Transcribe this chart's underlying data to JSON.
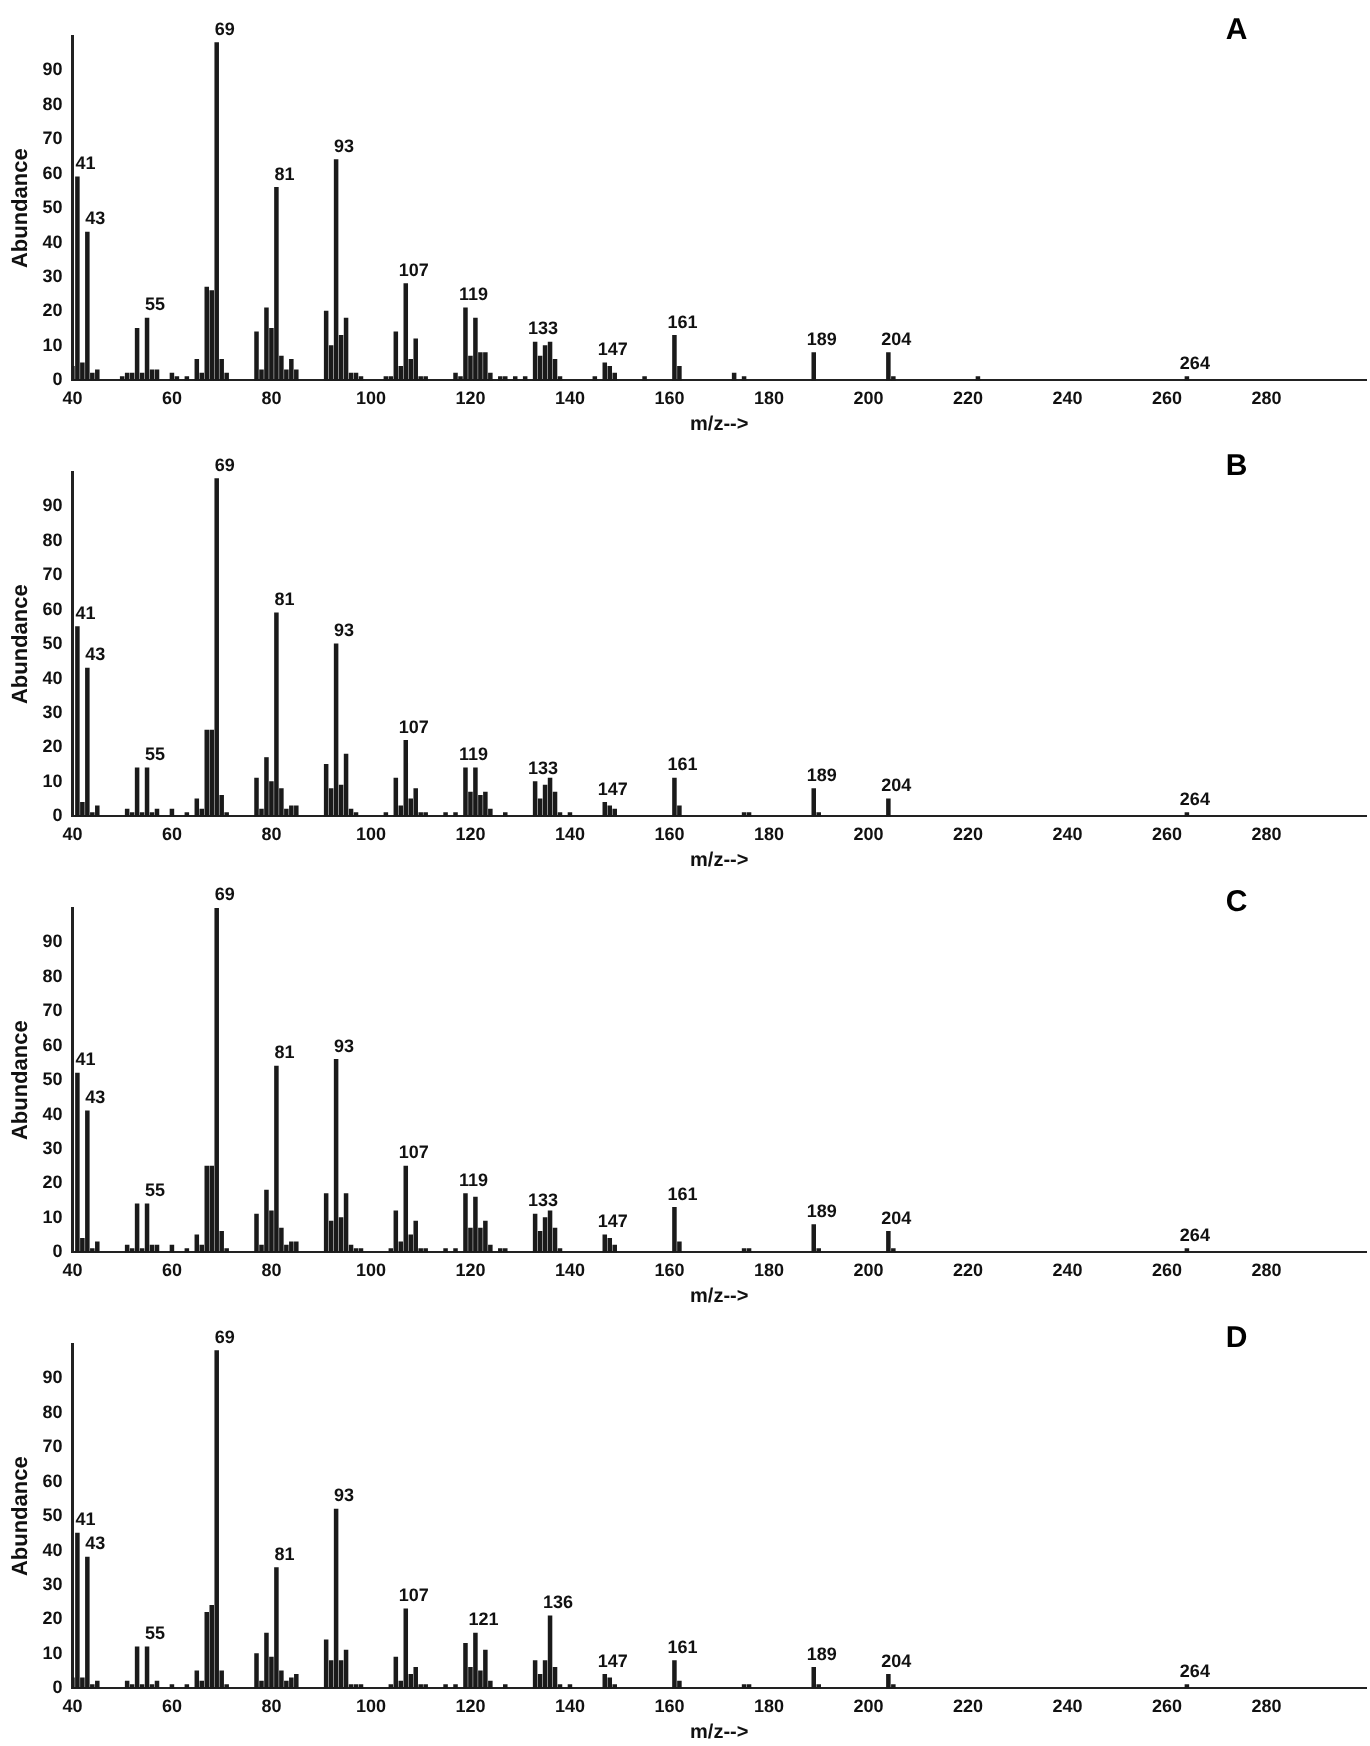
{
  "chart_data": [
    {
      "type": "bar",
      "title": "A",
      "xlabel": "m/z-->",
      "ylabel": "Abundance",
      "color": "#1a1a1a",
      "grid": false,
      "legend": false,
      "xlim": [
        40,
        300
      ],
      "xticks": [
        40,
        60,
        80,
        100,
        120,
        140,
        160,
        180,
        200,
        220,
        240,
        260,
        280
      ],
      "ylim": [
        0,
        100
      ],
      "yticks": [
        0,
        10,
        20,
        30,
        40,
        50,
        60,
        70,
        80,
        90
      ],
      "x": [
        40,
        41,
        42,
        43,
        44,
        45,
        50,
        51,
        52,
        53,
        54,
        55,
        56,
        57,
        60,
        61,
        63,
        65,
        66,
        67,
        68,
        69,
        70,
        71,
        77,
        78,
        79,
        80,
        81,
        82,
        83,
        84,
        85,
        91,
        92,
        93,
        94,
        95,
        96,
        97,
        98,
        103,
        104,
        105,
        106,
        107,
        108,
        109,
        110,
        111,
        117,
        118,
        119,
        120,
        121,
        122,
        123,
        124,
        126,
        127,
        129,
        131,
        133,
        134,
        135,
        136,
        137,
        138,
        145,
        147,
        148,
        149,
        155,
        161,
        162,
        173,
        175,
        189,
        204,
        205,
        222,
        264
      ],
      "values": [
        4,
        59,
        5,
        43,
        2,
        3,
        1,
        2,
        2,
        15,
        2,
        18,
        3,
        3,
        2,
        1,
        1,
        6,
        2,
        27,
        26,
        98,
        6,
        2,
        14,
        3,
        21,
        15,
        56,
        7,
        3,
        6,
        3,
        20,
        10,
        64,
        13,
        18,
        2,
        2,
        1,
        1,
        1,
        14,
        4,
        28,
        6,
        12,
        1,
        1,
        2,
        1,
        21,
        7,
        18,
        8,
        8,
        2,
        1,
        1,
        1,
        1,
        11,
        7,
        10,
        11,
        6,
        1,
        1,
        5,
        4,
        2,
        1,
        13,
        4,
        2,
        1,
        8,
        8,
        1,
        1,
        1
      ],
      "annotations": [
        {
          "text": "41",
          "x": 41,
          "y": 59
        },
        {
          "text": "43",
          "x": 43,
          "y": 43
        },
        {
          "text": "55",
          "x": 55,
          "y": 18
        },
        {
          "text": "69",
          "x": 69,
          "y": 98
        },
        {
          "text": "81",
          "x": 81,
          "y": 56
        },
        {
          "text": "93",
          "x": 93,
          "y": 64
        },
        {
          "text": "107",
          "x": 107,
          "y": 28
        },
        {
          "text": "119",
          "x": 119,
          "y": 21
        },
        {
          "text": "133",
          "x": 133,
          "y": 11
        },
        {
          "text": "147",
          "x": 147,
          "y": 5
        },
        {
          "text": "161",
          "x": 161,
          "y": 13
        },
        {
          "text": "189",
          "x": 189,
          "y": 8
        },
        {
          "text": "204",
          "x": 204,
          "y": 8
        },
        {
          "text": "264",
          "x": 264,
          "y": 1
        }
      ]
    },
    {
      "type": "bar",
      "title": "B",
      "xlabel": "m/z-->",
      "ylabel": "Abundance",
      "color": "#1a1a1a",
      "grid": false,
      "legend": false,
      "xlim": [
        40,
        300
      ],
      "xticks": [
        40,
        60,
        80,
        100,
        120,
        140,
        160,
        180,
        200,
        220,
        240,
        260,
        280
      ],
      "ylim": [
        0,
        100
      ],
      "yticks": [
        0,
        10,
        20,
        30,
        40,
        50,
        60,
        70,
        80,
        90
      ],
      "x": [
        41,
        42,
        43,
        44,
        45,
        51,
        52,
        53,
        54,
        55,
        56,
        57,
        60,
        63,
        65,
        66,
        67,
        68,
        69,
        70,
        71,
        77,
        78,
        79,
        80,
        81,
        82,
        83,
        84,
        85,
        91,
        92,
        93,
        94,
        95,
        96,
        97,
        103,
        105,
        106,
        107,
        108,
        109,
        110,
        111,
        115,
        117,
        119,
        120,
        121,
        122,
        123,
        124,
        127,
        133,
        134,
        135,
        136,
        137,
        138,
        140,
        147,
        148,
        149,
        161,
        162,
        175,
        176,
        189,
        190,
        204,
        264
      ],
      "values": [
        55,
        4,
        43,
        1,
        3,
        2,
        1,
        14,
        1,
        14,
        1,
        2,
        2,
        1,
        5,
        2,
        25,
        25,
        98,
        6,
        1,
        11,
        2,
        17,
        10,
        59,
        8,
        2,
        3,
        3,
        15,
        8,
        50,
        9,
        18,
        2,
        1,
        1,
        11,
        3,
        22,
        5,
        8,
        1,
        1,
        1,
        1,
        14,
        7,
        14,
        6,
        7,
        2,
        1,
        10,
        5,
        9,
        11,
        7,
        1,
        1,
        4,
        3,
        2,
        11,
        3,
        1,
        1,
        8,
        1,
        5,
        1
      ],
      "annotations": [
        {
          "text": "41",
          "x": 41,
          "y": 55
        },
        {
          "text": "43",
          "x": 43,
          "y": 43
        },
        {
          "text": "55",
          "x": 55,
          "y": 14
        },
        {
          "text": "69",
          "x": 69,
          "y": 98
        },
        {
          "text": "81",
          "x": 81,
          "y": 59
        },
        {
          "text": "93",
          "x": 93,
          "y": 50
        },
        {
          "text": "107",
          "x": 107,
          "y": 22
        },
        {
          "text": "119",
          "x": 119,
          "y": 14
        },
        {
          "text": "133",
          "x": 133,
          "y": 10
        },
        {
          "text": "147",
          "x": 147,
          "y": 4
        },
        {
          "text": "161",
          "x": 161,
          "y": 11
        },
        {
          "text": "189",
          "x": 189,
          "y": 8
        },
        {
          "text": "204",
          "x": 204,
          "y": 5
        },
        {
          "text": "264",
          "x": 264,
          "y": 1
        }
      ]
    },
    {
      "type": "bar",
      "title": "C",
      "xlabel": "m/z-->",
      "ylabel": "Abundance",
      "color": "#1a1a1a",
      "grid": false,
      "legend": false,
      "xlim": [
        40,
        300
      ],
      "xticks": [
        40,
        60,
        80,
        100,
        120,
        140,
        160,
        180,
        200,
        220,
        240,
        260,
        280
      ],
      "ylim": [
        0,
        100
      ],
      "yticks": [
        0,
        10,
        20,
        30,
        40,
        50,
        60,
        70,
        80,
        90
      ],
      "x": [
        41,
        42,
        43,
        44,
        45,
        51,
        52,
        53,
        54,
        55,
        56,
        57,
        60,
        63,
        65,
        66,
        67,
        68,
        69,
        70,
        71,
        77,
        78,
        79,
        80,
        81,
        82,
        83,
        84,
        85,
        91,
        92,
        93,
        94,
        95,
        96,
        97,
        98,
        104,
        105,
        106,
        107,
        108,
        109,
        110,
        111,
        115,
        117,
        119,
        120,
        121,
        122,
        123,
        124,
        126,
        127,
        133,
        134,
        135,
        136,
        137,
        138,
        147,
        148,
        149,
        161,
        162,
        175,
        176,
        189,
        190,
        204,
        205,
        264
      ],
      "values": [
        52,
        4,
        41,
        1,
        3,
        2,
        1,
        14,
        1,
        14,
        2,
        2,
        2,
        1,
        5,
        2,
        25,
        25,
        100,
        6,
        1,
        11,
        2,
        18,
        12,
        54,
        7,
        2,
        3,
        3,
        17,
        9,
        56,
        10,
        17,
        2,
        1,
        1,
        1,
        12,
        3,
        25,
        5,
        9,
        1,
        1,
        1,
        1,
        17,
        7,
        16,
        7,
        9,
        2,
        1,
        1,
        11,
        6,
        10,
        12,
        7,
        1,
        5,
        4,
        2,
        13,
        3,
        1,
        1,
        8,
        1,
        6,
        1,
        1
      ],
      "annotations": [
        {
          "text": "41",
          "x": 41,
          "y": 52
        },
        {
          "text": "43",
          "x": 43,
          "y": 41
        },
        {
          "text": "55",
          "x": 55,
          "y": 14
        },
        {
          "text": "69",
          "x": 69,
          "y": 100
        },
        {
          "text": "81",
          "x": 81,
          "y": 54
        },
        {
          "text": "93",
          "x": 93,
          "y": 56
        },
        {
          "text": "107",
          "x": 107,
          "y": 25
        },
        {
          "text": "119",
          "x": 119,
          "y": 17
        },
        {
          "text": "133",
          "x": 133,
          "y": 11
        },
        {
          "text": "147",
          "x": 147,
          "y": 5
        },
        {
          "text": "161",
          "x": 161,
          "y": 13
        },
        {
          "text": "189",
          "x": 189,
          "y": 8
        },
        {
          "text": "204",
          "x": 204,
          "y": 6
        },
        {
          "text": "264",
          "x": 264,
          "y": 1
        }
      ]
    },
    {
      "type": "bar",
      "title": "D",
      "xlabel": "m/z-->",
      "ylabel": "Abundance",
      "color": "#1a1a1a",
      "grid": false,
      "legend": false,
      "xlim": [
        40,
        300
      ],
      "xticks": [
        40,
        60,
        80,
        100,
        120,
        140,
        160,
        180,
        200,
        220,
        240,
        260,
        280
      ],
      "ylim": [
        0,
        100
      ],
      "yticks": [
        0,
        10,
        20,
        30,
        40,
        50,
        60,
        70,
        80,
        90
      ],
      "x": [
        40,
        41,
        42,
        43,
        44,
        45,
        51,
        52,
        53,
        54,
        55,
        56,
        57,
        60,
        63,
        65,
        66,
        67,
        68,
        69,
        70,
        71,
        77,
        78,
        79,
        80,
        81,
        82,
        83,
        84,
        85,
        91,
        92,
        93,
        94,
        95,
        96,
        97,
        98,
        104,
        105,
        106,
        107,
        108,
        109,
        110,
        111,
        115,
        117,
        119,
        120,
        121,
        122,
        123,
        124,
        127,
        133,
        134,
        135,
        136,
        137,
        138,
        140,
        147,
        148,
        149,
        161,
        162,
        175,
        176,
        189,
        190,
        204,
        205,
        264
      ],
      "values": [
        3,
        45,
        3,
        38,
        1,
        2,
        2,
        1,
        12,
        1,
        12,
        1,
        2,
        1,
        1,
        5,
        2,
        22,
        24,
        98,
        5,
        1,
        10,
        2,
        16,
        9,
        35,
        5,
        2,
        3,
        4,
        14,
        8,
        52,
        8,
        11,
        1,
        1,
        1,
        1,
        9,
        2,
        23,
        4,
        6,
        1,
        1,
        1,
        1,
        13,
        6,
        16,
        5,
        11,
        2,
        1,
        8,
        4,
        8,
        21,
        6,
        1,
        1,
        4,
        3,
        1,
        8,
        2,
        1,
        1,
        6,
        1,
        4,
        1,
        1
      ],
      "annotations": [
        {
          "text": "41",
          "x": 41,
          "y": 45
        },
        {
          "text": "43",
          "x": 43,
          "y": 38
        },
        {
          "text": "55",
          "x": 55,
          "y": 12
        },
        {
          "text": "69",
          "x": 69,
          "y": 98
        },
        {
          "text": "81",
          "x": 81,
          "y": 35
        },
        {
          "text": "93",
          "x": 93,
          "y": 52
        },
        {
          "text": "107",
          "x": 107,
          "y": 23
        },
        {
          "text": "121",
          "x": 121,
          "y": 16
        },
        {
          "text": "136",
          "x": 136,
          "y": 21
        },
        {
          "text": "147",
          "x": 147,
          "y": 4
        },
        {
          "text": "161",
          "x": 161,
          "y": 8
        },
        {
          "text": "189",
          "x": 189,
          "y": 6
        },
        {
          "text": "204",
          "x": 204,
          "y": 4
        },
        {
          "text": "264",
          "x": 264,
          "y": 1
        }
      ]
    }
  ]
}
